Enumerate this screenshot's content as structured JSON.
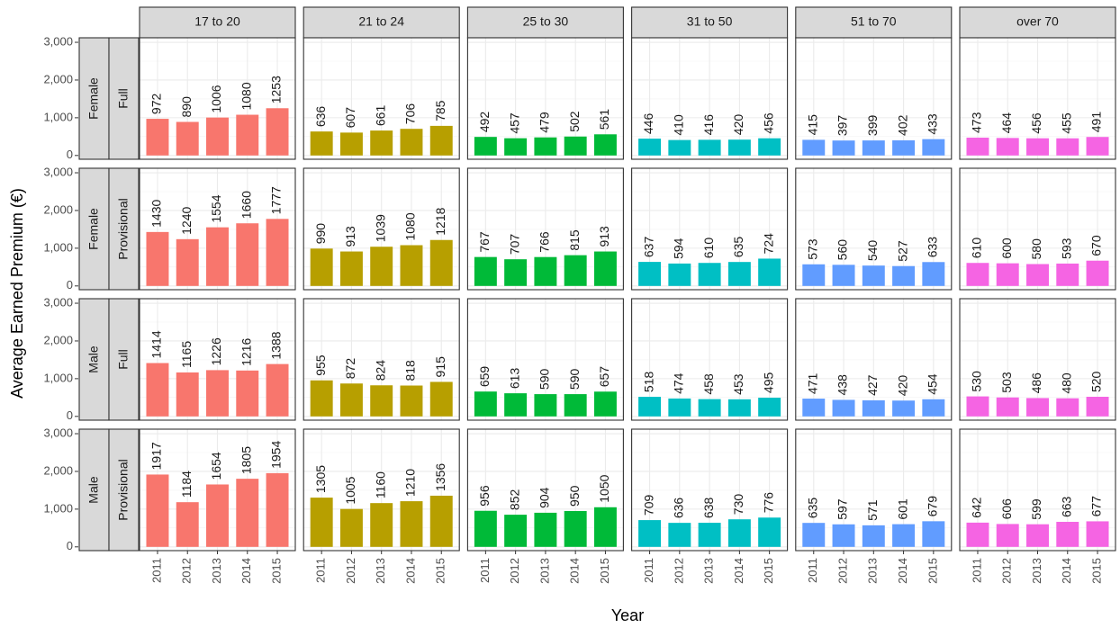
{
  "chart_data": {
    "type": "bar",
    "x_label": "Year",
    "y_label": "Average Earned Premium (€)",
    "categories": [
      "2011",
      "2012",
      "2013",
      "2014",
      "2015"
    ],
    "columns": [
      {
        "label": "17 to 20",
        "color": "#F8766D"
      },
      {
        "label": "21 to 24",
        "color": "#B79F00"
      },
      {
        "label": "25 to 30",
        "color": "#00BA38"
      },
      {
        "label": "31 to 50",
        "color": "#00BFC4"
      },
      {
        "label": "51 to 70",
        "color": "#619CFF"
      },
      {
        "label": "over 70",
        "color": "#F564E3"
      }
    ],
    "rows": [
      {
        "sex": "Female",
        "type": "Full"
      },
      {
        "sex": "Female",
        "type": "Provisional"
      },
      {
        "sex": "Male",
        "type": "Full"
      },
      {
        "sex": "Male",
        "type": "Provisional"
      }
    ],
    "values": [
      [
        [
          972,
          890,
          1006,
          1080,
          1253
        ],
        [
          636,
          607,
          661,
          706,
          785
        ],
        [
          492,
          457,
          479,
          502,
          561
        ],
        [
          446,
          410,
          416,
          420,
          456
        ],
        [
          415,
          397,
          399,
          402,
          433
        ],
        [
          473,
          464,
          456,
          455,
          491
        ]
      ],
      [
        [
          1430,
          1240,
          1554,
          1660,
          1777
        ],
        [
          990,
          913,
          1039,
          1080,
          1218
        ],
        [
          767,
          707,
          766,
          815,
          913
        ],
        [
          637,
          594,
          610,
          635,
          724
        ],
        [
          573,
          560,
          540,
          527,
          633
        ],
        [
          610,
          600,
          580,
          593,
          670
        ]
      ],
      [
        [
          1414,
          1165,
          1226,
          1216,
          1388
        ],
        [
          955,
          872,
          824,
          818,
          915
        ],
        [
          659,
          613,
          590,
          590,
          657
        ],
        [
          518,
          474,
          458,
          453,
          495
        ],
        [
          471,
          438,
          427,
          420,
          454
        ],
        [
          530,
          503,
          486,
          480,
          520
        ]
      ],
      [
        [
          1917,
          1184,
          1654,
          1805,
          1954
        ],
        [
          1305,
          1005,
          1160,
          1210,
          1356
        ],
        [
          956,
          852,
          904,
          950,
          1050
        ],
        [
          709,
          636,
          638,
          730,
          776
        ],
        [
          635,
          597,
          571,
          601,
          679
        ],
        [
          642,
          606,
          599,
          663,
          677
        ]
      ]
    ],
    "ylim": [
      -100,
      3120
    ],
    "yticks": [
      0,
      {
        "value": 1000,
        "label": "1,000"
      },
      {
        "value": 2000,
        "label": "2,000"
      },
      {
        "value": 3000,
        "label": "3,000"
      }
    ],
    "grid": true
  }
}
